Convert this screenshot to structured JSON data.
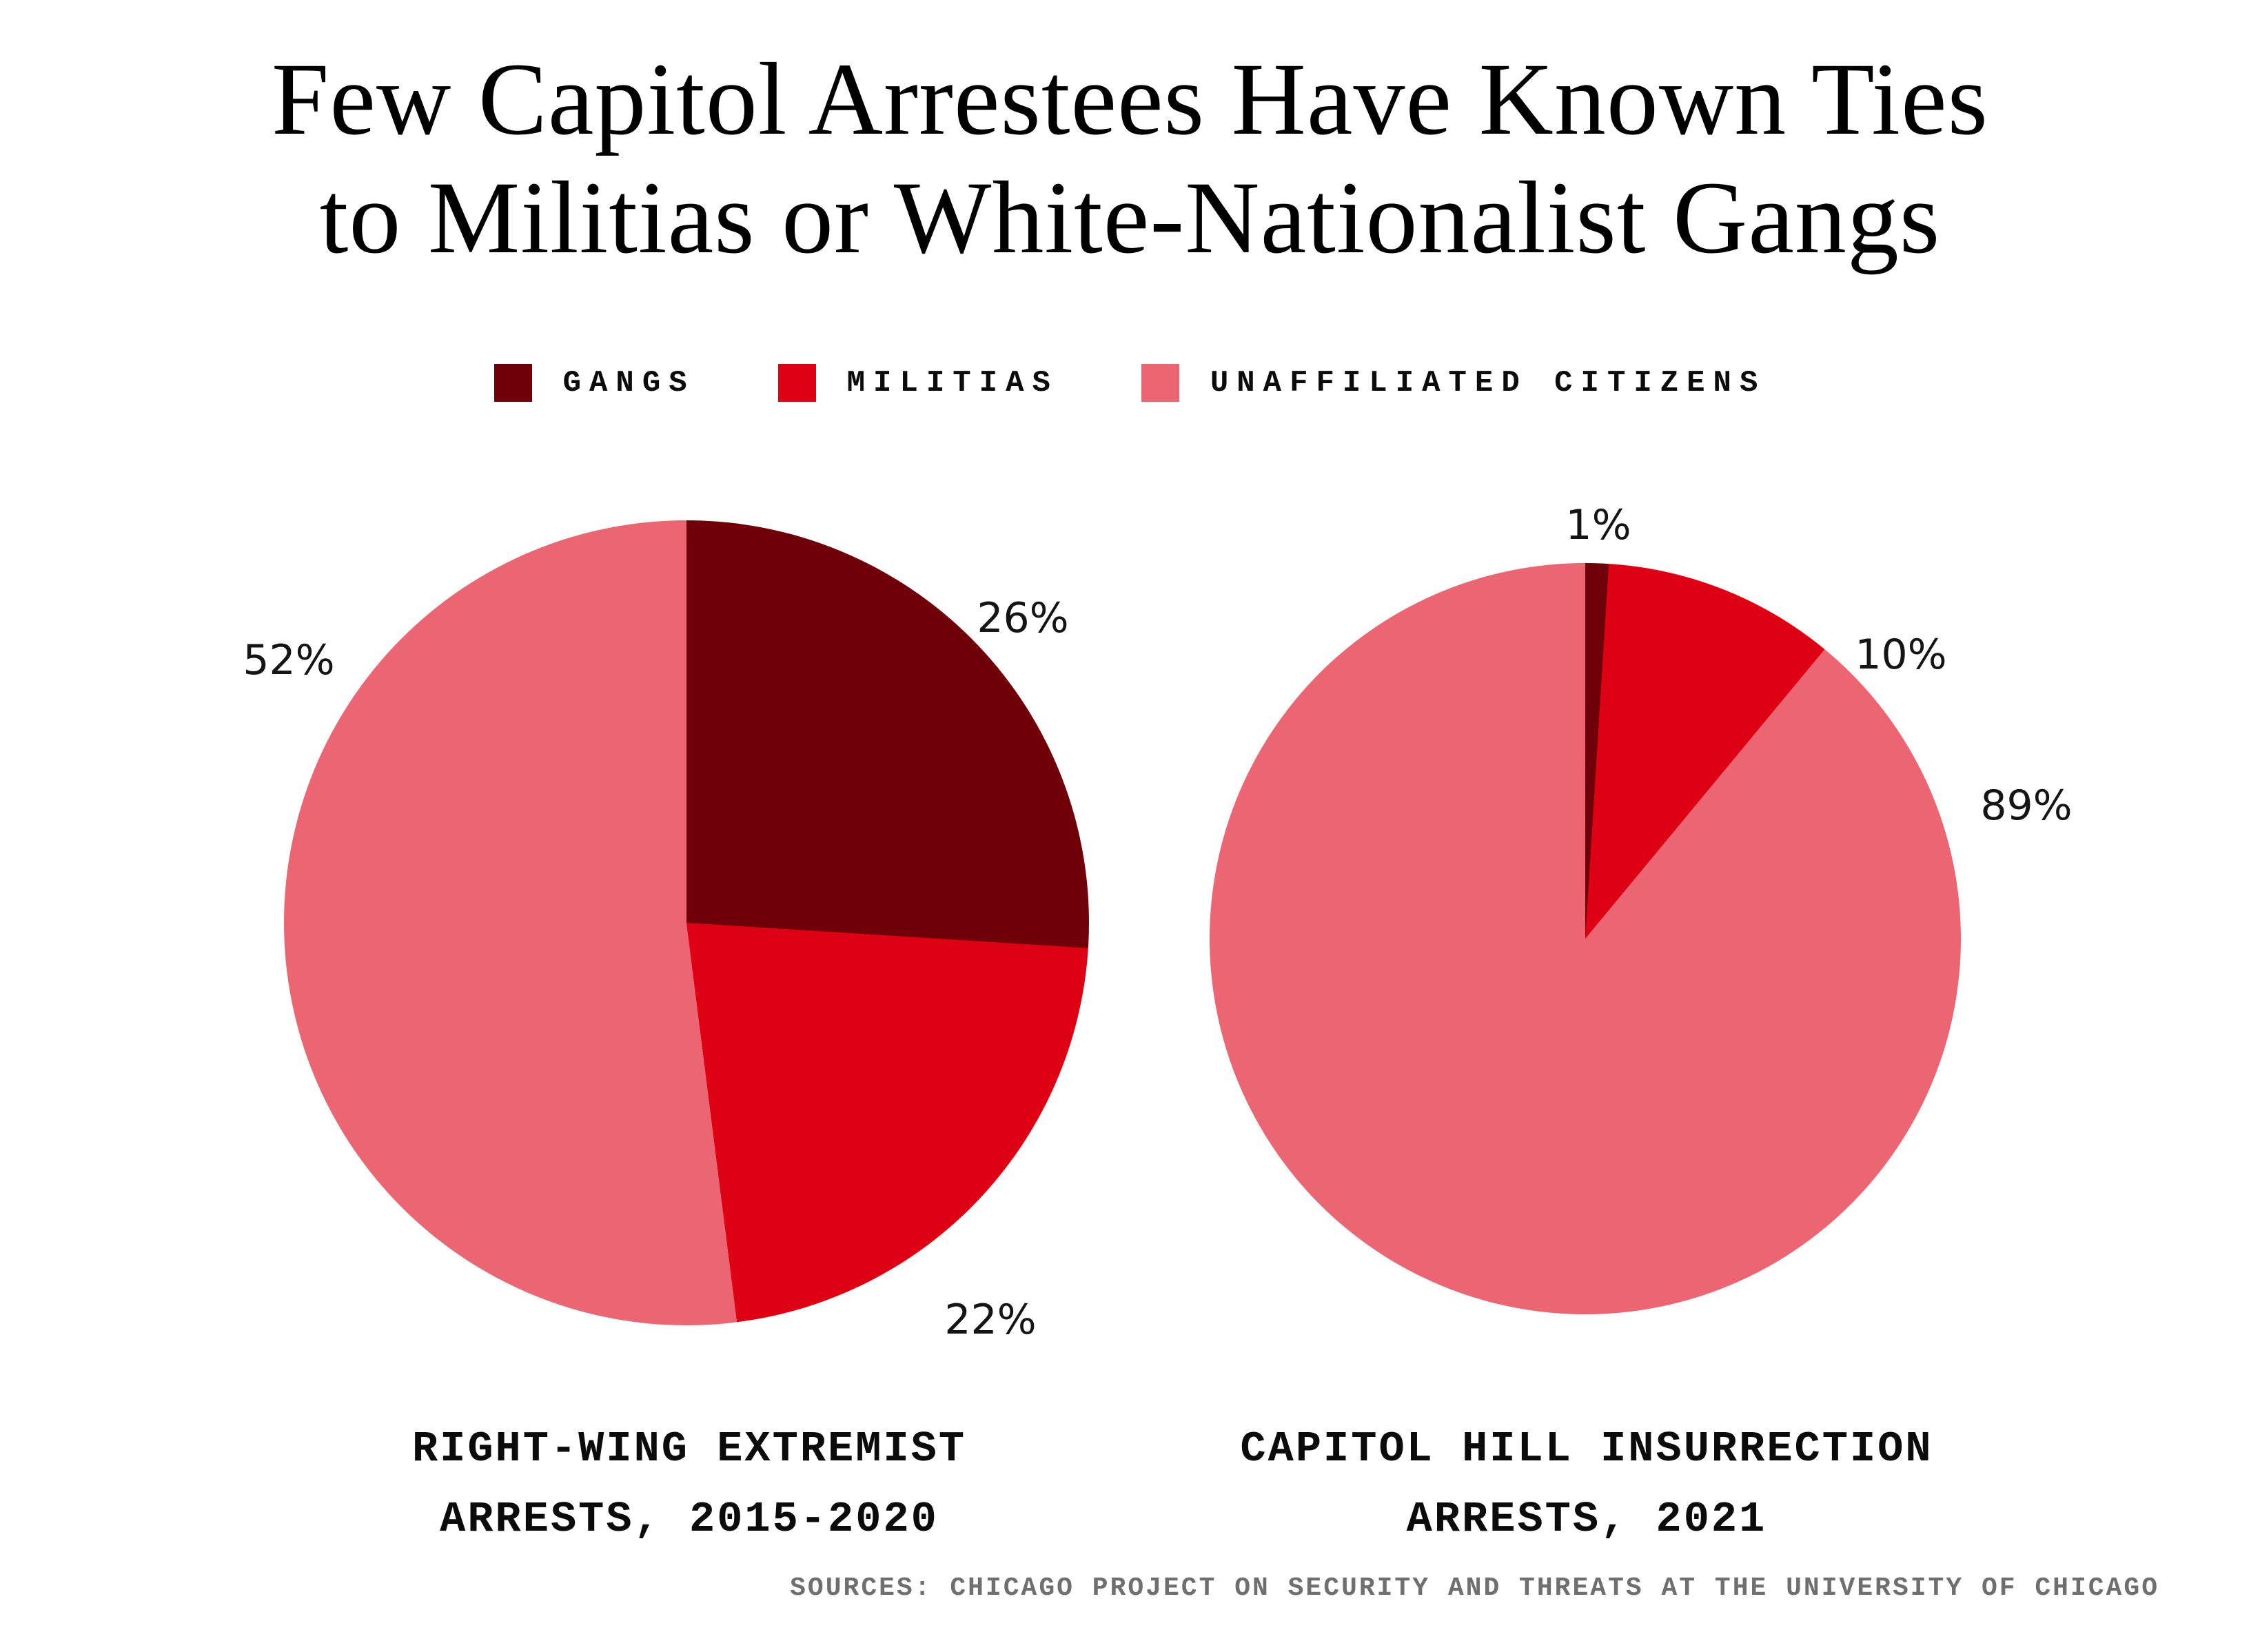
{
  "title": {
    "line1": "Few Capitol Arrestees Have Known Ties",
    "line2": "to Militias or White-Nationalist Gangs"
  },
  "legend": {
    "items": [
      {
        "label": "GANGS",
        "color": "#6F0009"
      },
      {
        "label": "MILITIAS",
        "color": "#DE0012"
      },
      {
        "label": "UNAFFILIATED CITIZENS",
        "color": "#EC6572"
      }
    ]
  },
  "source": "SOURCES: CHICAGO PROJECT ON SECURITY AND THREATS AT THE UNIVERSITY OF CHICAGO",
  "chart_data": [
    {
      "type": "pie",
      "title": "RIGHT-WING EXTREMIST ARRESTS, 2015-2020",
      "caption_lines": [
        "RIGHT-WING EXTREMIST",
        "ARRESTS, 2015-2020"
      ],
      "categories": [
        "GANGS",
        "MILITIAS",
        "UNAFFILIATED CITIZENS"
      ],
      "values": [
        26,
        22,
        52
      ],
      "slice_labels": [
        "26%",
        "22%",
        "52%"
      ],
      "colors": [
        "#6F0009",
        "#DE0012",
        "#EC6572"
      ],
      "start_angle_deg": 0,
      "direction": "clockwise",
      "legend_position": "top"
    },
    {
      "type": "pie",
      "title": "CAPITOL HILL INSURRECTION ARRESTS, 2021",
      "caption_lines": [
        "CAPITOL HILL INSURRECTION",
        "ARRESTS, 2021"
      ],
      "categories": [
        "GANGS",
        "MILITIAS",
        "UNAFFILIATED CITIZENS"
      ],
      "values": [
        1,
        10,
        89
      ],
      "slice_labels": [
        "1%",
        "10%",
        "89%"
      ],
      "colors": [
        "#6F0009",
        "#DE0012",
        "#EC6572"
      ],
      "start_angle_deg": 0,
      "direction": "clockwise",
      "legend_position": "top"
    }
  ]
}
